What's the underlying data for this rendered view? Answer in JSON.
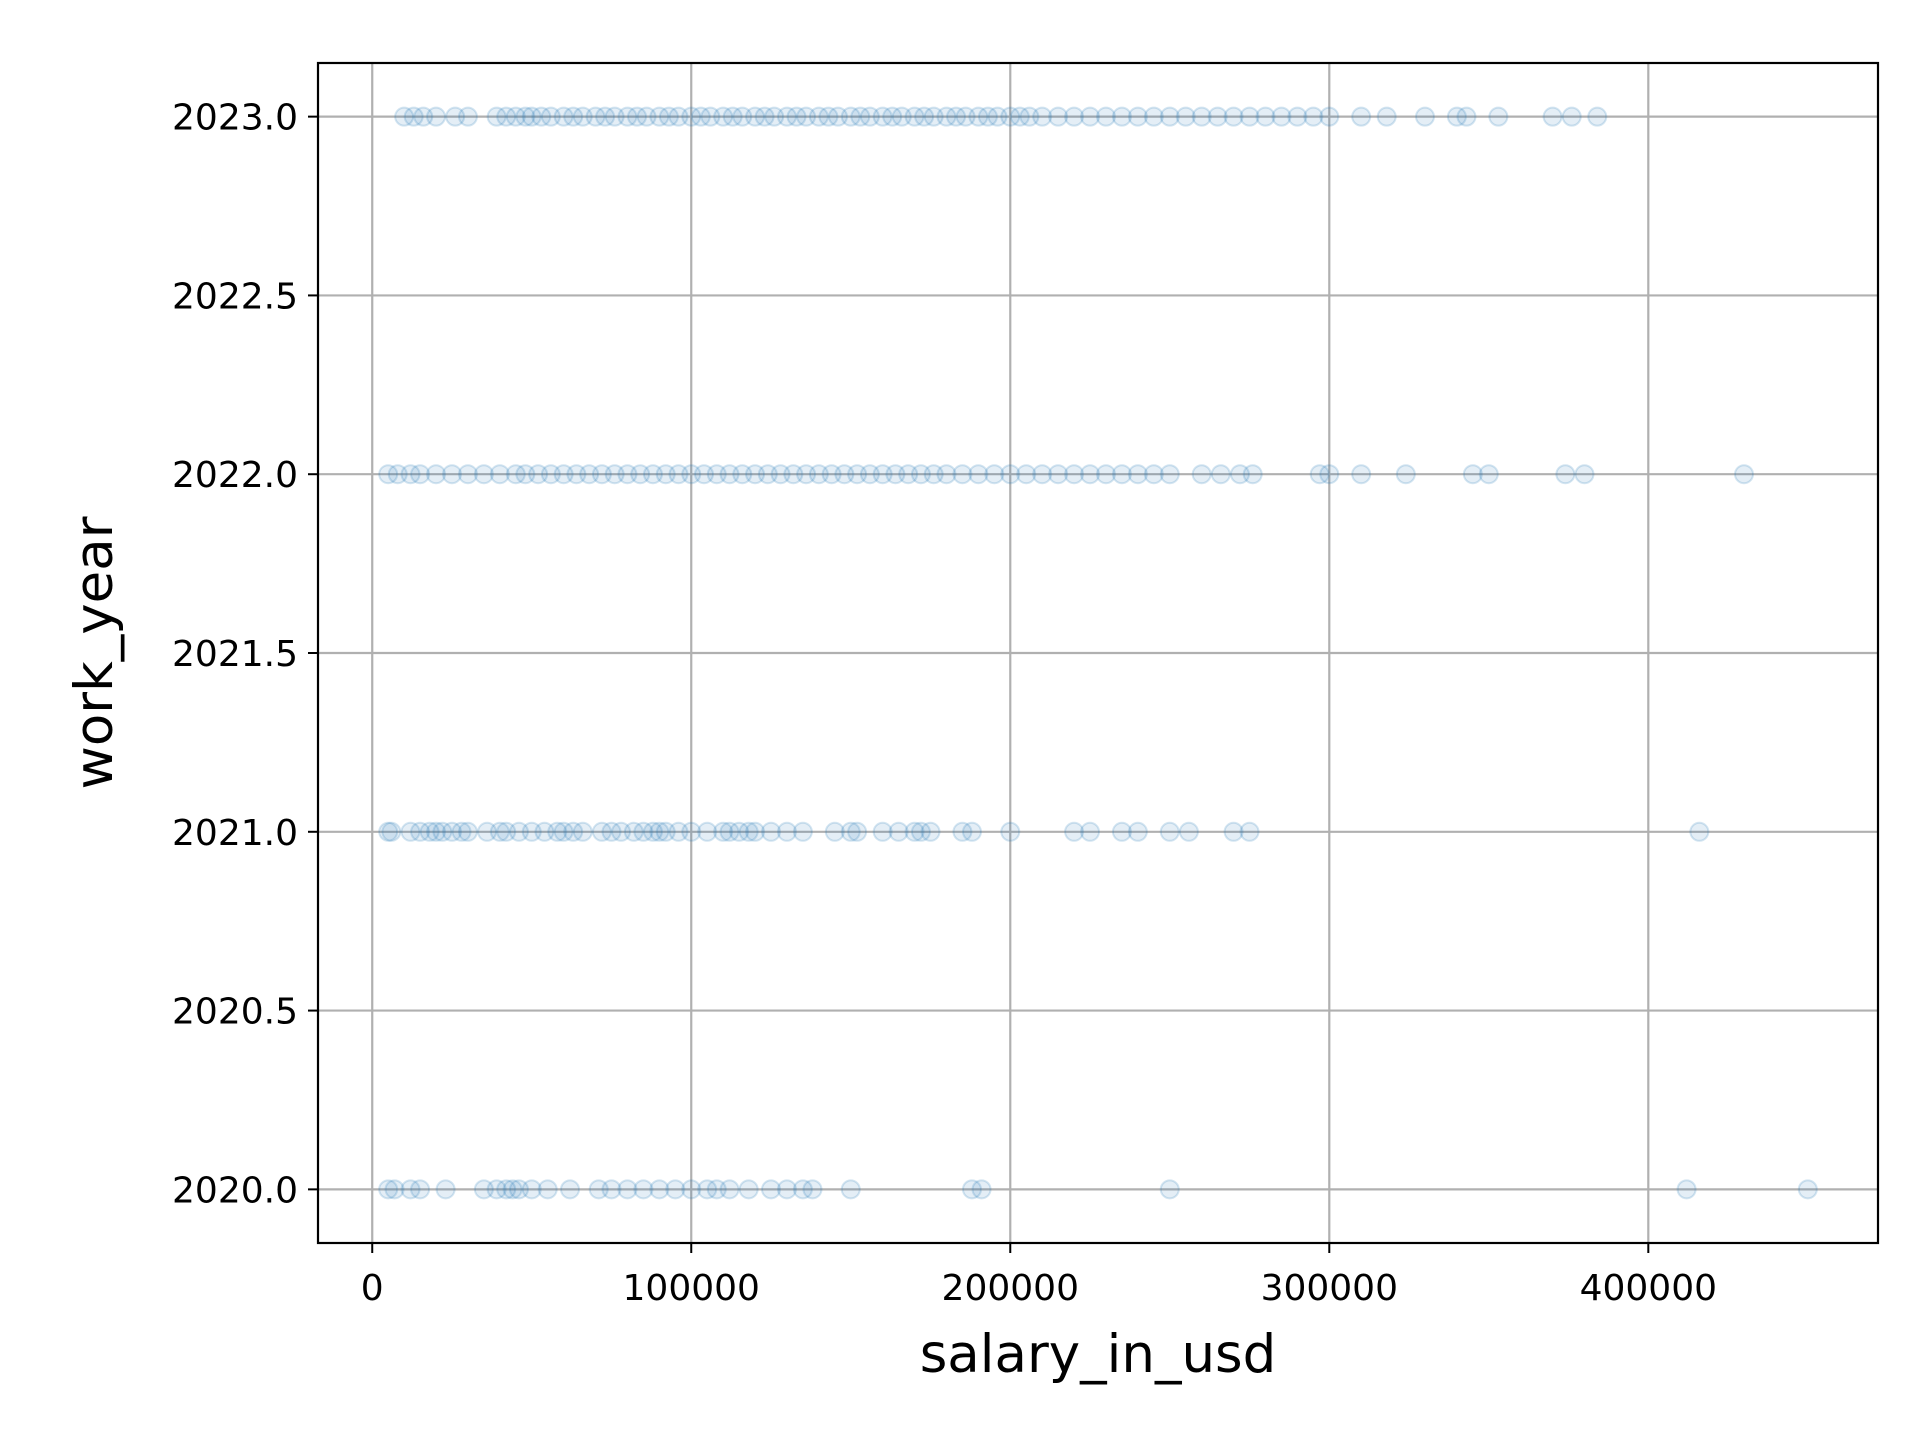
{
  "chart_data": {
    "type": "scatter",
    "xlabel": "salary_in_usd",
    "ylabel": "work_year",
    "xlim": [
      -17000,
      472000
    ],
    "ylim": [
      2019.85,
      2023.15
    ],
    "xticks": [
      0,
      100000,
      200000,
      300000,
      400000
    ],
    "xtick_labels": [
      "0",
      "100000",
      "200000",
      "300000",
      "400000"
    ],
    "yticks": [
      2020.0,
      2020.5,
      2021.0,
      2021.5,
      2022.0,
      2022.5,
      2023.0
    ],
    "ytick_labels": [
      "2020.0",
      "2020.5",
      "2021.0",
      "2021.5",
      "2022.0",
      "2022.5",
      "2023.0"
    ],
    "grid": true,
    "marker_color": "#1f77b4",
    "marker_alpha": 0.12,
    "series": [
      {
        "x": [
          10000,
          13000,
          16000,
          20000,
          26000,
          30000,
          39000,
          42000,
          45000,
          48000,
          50000,
          53000,
          56000,
          60000,
          63000,
          66000,
          70000,
          73000,
          76000,
          80000,
          83000,
          86000,
          90000,
          93000,
          96000,
          100000,
          103000,
          106000,
          110000,
          113000,
          116000,
          120000,
          123000,
          126000,
          130000,
          133000,
          136000,
          140000,
          143000,
          146000,
          150000,
          153000,
          156000,
          160000,
          163000,
          166000,
          170000,
          173000,
          176000,
          180000,
          183000,
          186000,
          190000,
          193000,
          196000,
          200000,
          203000,
          206000,
          210000,
          215000,
          220000,
          225000,
          230000,
          235000,
          240000,
          245000,
          250000,
          255000,
          260000,
          265000,
          270000,
          275000,
          280000,
          285000,
          290000,
          295000,
          300000,
          310000,
          318000,
          330000,
          340000,
          343000,
          353000,
          370000,
          376000,
          384000
        ],
        "y": [
          2023,
          2023,
          2023,
          2023,
          2023,
          2023,
          2023,
          2023,
          2023,
          2023,
          2023,
          2023,
          2023,
          2023,
          2023,
          2023,
          2023,
          2023,
          2023,
          2023,
          2023,
          2023,
          2023,
          2023,
          2023,
          2023,
          2023,
          2023,
          2023,
          2023,
          2023,
          2023,
          2023,
          2023,
          2023,
          2023,
          2023,
          2023,
          2023,
          2023,
          2023,
          2023,
          2023,
          2023,
          2023,
          2023,
          2023,
          2023,
          2023,
          2023,
          2023,
          2023,
          2023,
          2023,
          2023,
          2023,
          2023,
          2023,
          2023,
          2023,
          2023,
          2023,
          2023,
          2023,
          2023,
          2023,
          2023,
          2023,
          2023,
          2023,
          2023,
          2023,
          2023,
          2023,
          2023,
          2023,
          2023,
          2023,
          2023,
          2023,
          2023,
          2023,
          2023,
          2023,
          2023,
          2023
        ]
      },
      {
        "x": [
          5000,
          8000,
          12000,
          15000,
          20000,
          25000,
          30000,
          35000,
          40000,
          45000,
          48000,
          52000,
          56000,
          60000,
          64000,
          68000,
          72000,
          76000,
          80000,
          84000,
          88000,
          92000,
          96000,
          100000,
          104000,
          108000,
          112000,
          116000,
          120000,
          124000,
          128000,
          132000,
          136000,
          140000,
          144000,
          148000,
          152000,
          156000,
          160000,
          164000,
          168000,
          172000,
          176000,
          180000,
          185000,
          190000,
          195000,
          200000,
          205000,
          210000,
          215000,
          220000,
          225000,
          230000,
          235000,
          240000,
          245000,
          250000,
          260000,
          266000,
          272000,
          276000,
          297000,
          300000,
          310000,
          324000,
          345000,
          350000,
          374000,
          380000,
          430000
        ],
        "y": [
          2022,
          2022,
          2022,
          2022,
          2022,
          2022,
          2022,
          2022,
          2022,
          2022,
          2022,
          2022,
          2022,
          2022,
          2022,
          2022,
          2022,
          2022,
          2022,
          2022,
          2022,
          2022,
          2022,
          2022,
          2022,
          2022,
          2022,
          2022,
          2022,
          2022,
          2022,
          2022,
          2022,
          2022,
          2022,
          2022,
          2022,
          2022,
          2022,
          2022,
          2022,
          2022,
          2022,
          2022,
          2022,
          2022,
          2022,
          2022,
          2022,
          2022,
          2022,
          2022,
          2022,
          2022,
          2022,
          2022,
          2022,
          2022,
          2022,
          2022,
          2022,
          2022,
          2022,
          2022,
          2022,
          2022,
          2022,
          2022,
          2022,
          2022,
          2022
        ]
      },
      {
        "x": [
          5000,
          6000,
          12000,
          15000,
          18000,
          20000,
          22000,
          25000,
          28000,
          30000,
          36000,
          40000,
          42000,
          46000,
          50000,
          54000,
          58000,
          60000,
          63000,
          66000,
          72000,
          75000,
          78000,
          82000,
          85000,
          88000,
          90000,
          92000,
          96000,
          100000,
          105000,
          110000,
          112000,
          115000,
          118000,
          120000,
          125000,
          130000,
          135000,
          145000,
          150000,
          152000,
          160000,
          165000,
          170000,
          172000,
          175000,
          185000,
          188000,
          200000,
          220000,
          225000,
          235000,
          240000,
          250000,
          256000,
          270000,
          275000,
          416000
        ],
        "y": [
          2021,
          2021,
          2021,
          2021,
          2021,
          2021,
          2021,
          2021,
          2021,
          2021,
          2021,
          2021,
          2021,
          2021,
          2021,
          2021,
          2021,
          2021,
          2021,
          2021,
          2021,
          2021,
          2021,
          2021,
          2021,
          2021,
          2021,
          2021,
          2021,
          2021,
          2021,
          2021,
          2021,
          2021,
          2021,
          2021,
          2021,
          2021,
          2021,
          2021,
          2021,
          2021,
          2021,
          2021,
          2021,
          2021,
          2021,
          2021,
          2021,
          2021,
          2021,
          2021,
          2021,
          2021,
          2021,
          2021,
          2021,
          2021,
          2021
        ]
      },
      {
        "x": [
          5000,
          7000,
          12000,
          15000,
          23000,
          35000,
          39000,
          42000,
          44000,
          46000,
          50000,
          55000,
          62000,
          71000,
          75000,
          80000,
          85000,
          90000,
          95000,
          100000,
          105000,
          108000,
          112000,
          118000,
          125000,
          130000,
          135000,
          138000,
          150000,
          188000,
          191000,
          250000,
          412000,
          450000
        ],
        "y": [
          2020,
          2020,
          2020,
          2020,
          2020,
          2020,
          2020,
          2020,
          2020,
          2020,
          2020,
          2020,
          2020,
          2020,
          2020,
          2020,
          2020,
          2020,
          2020,
          2020,
          2020,
          2020,
          2020,
          2020,
          2020,
          2020,
          2020,
          2020,
          2020,
          2020,
          2020,
          2020,
          2020,
          2020
        ]
      }
    ]
  }
}
